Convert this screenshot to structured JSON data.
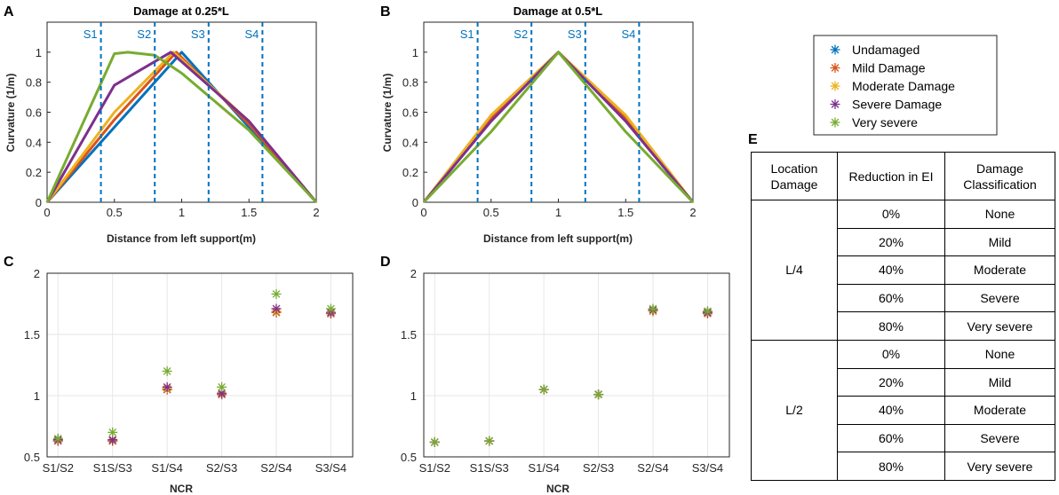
{
  "panels": {
    "A": {
      "label": "A",
      "title": "Damage at 0.25*L",
      "ylabel": "Curvature (1/m)",
      "xlabel": "Distance from left support(m)"
    },
    "B": {
      "label": "B",
      "title": "Damage at 0.5*L",
      "ylabel": "Curvature (1/m)",
      "xlabel": "Distance from left support(m)"
    },
    "C": {
      "label": "C",
      "xlabel": "NCR"
    },
    "D": {
      "label": "D",
      "xlabel": "NCR"
    },
    "E": {
      "label": "E"
    }
  },
  "legend": {
    "entries": [
      "Undamaged",
      "Mild Damage",
      "Moderate Damage",
      "Severe Damage",
      "Very severe"
    ],
    "colors": [
      "#0072BD",
      "#D95319",
      "#EDB120",
      "#7E2F8E",
      "#77AC30"
    ]
  },
  "table": {
    "headers": [
      "Location Damage",
      "Reduction in EI",
      "Damage Classification"
    ],
    "groups": [
      {
        "location": "L/4",
        "rows": [
          {
            "reduction": "0%",
            "classification": "None"
          },
          {
            "reduction": "20%",
            "classification": "Mild"
          },
          {
            "reduction": "40%",
            "classification": "Moderate"
          },
          {
            "reduction": "60%",
            "classification": "Severe"
          },
          {
            "reduction": "80%",
            "classification": "Very severe"
          }
        ]
      },
      {
        "location": "L/2",
        "rows": [
          {
            "reduction": "0%",
            "classification": "None"
          },
          {
            "reduction": "20%",
            "classification": "Mild"
          },
          {
            "reduction": "40%",
            "classification": "Moderate"
          },
          {
            "reduction": "60%",
            "classification": "Severe"
          },
          {
            "reduction": "80%",
            "classification": "Very severe"
          }
        ]
      }
    ]
  },
  "chart_data": [
    {
      "type": "line",
      "title": "Damage at 0.25*L",
      "xlabel": "Distance from left support(m)",
      "ylabel": "Curvature (1/m)",
      "xlim": [
        0,
        2
      ],
      "ylim": [
        0,
        1.2
      ],
      "xticks": [
        0,
        0.5,
        1,
        1.5,
        2
      ],
      "xtick_labels": [
        "0",
        "0.5",
        "1",
        "1.5",
        "2"
      ],
      "yticks": [
        0,
        0.2,
        0.4,
        0.6,
        0.8,
        1
      ],
      "ytick_labels": [
        "0",
        "0.2",
        "0.4",
        "0.6",
        "0.8",
        "1"
      ],
      "sensors": [
        {
          "name": "S1",
          "x": 0.4
        },
        {
          "name": "S2",
          "x": 0.8
        },
        {
          "name": "S3",
          "x": 1.2
        },
        {
          "name": "S4",
          "x": 1.6
        }
      ],
      "series": [
        {
          "name": "Undamaged",
          "color": "#0072BD",
          "x": [
            0,
            0.5,
            1,
            1.5,
            2
          ],
          "y": [
            0,
            0.5,
            1,
            0.5,
            0
          ]
        },
        {
          "name": "Mild Damage",
          "color": "#D95319",
          "x": [
            0,
            0.5,
            0.96,
            1.5,
            2
          ],
          "y": [
            0,
            0.55,
            1,
            0.52,
            0
          ]
        },
        {
          "name": "Moderate Damage",
          "color": "#EDB120",
          "x": [
            0,
            0.5,
            0.94,
            1.5,
            2
          ],
          "y": [
            0,
            0.6,
            1,
            0.54,
            0
          ]
        },
        {
          "name": "Severe Damage",
          "color": "#7E2F8E",
          "x": [
            0,
            0.5,
            0.92,
            1.5,
            2
          ],
          "y": [
            0,
            0.78,
            1,
            0.54,
            0
          ]
        },
        {
          "name": "Very severe",
          "color": "#77AC30",
          "x": [
            0,
            0.5,
            0.6,
            0.8,
            1,
            1.5,
            2
          ],
          "y": [
            0,
            0.99,
            1,
            0.98,
            0.86,
            0.48,
            0
          ]
        }
      ]
    },
    {
      "type": "line",
      "title": "Damage at 0.5*L",
      "xlabel": "Distance from left support(m)",
      "ylabel": "Curvature (1/m)",
      "xlim": [
        0,
        2
      ],
      "ylim": [
        0,
        1.2
      ],
      "xticks": [
        0,
        0.5,
        1,
        1.5,
        2
      ],
      "xtick_labels": [
        "0",
        "0.5",
        "1",
        "1.5",
        "2"
      ],
      "yticks": [
        0,
        0.2,
        0.4,
        0.6,
        0.8,
        1
      ],
      "ytick_labels": [
        "0",
        "0.2",
        "0.4",
        "0.6",
        "0.8",
        "1"
      ],
      "sensors": [
        {
          "name": "S1",
          "x": 0.4
        },
        {
          "name": "S2",
          "x": 0.8
        },
        {
          "name": "S3",
          "x": 1.2
        },
        {
          "name": "S4",
          "x": 1.6
        }
      ],
      "series": [
        {
          "name": "Undamaged",
          "color": "#0072BD",
          "x": [
            0,
            0.5,
            1,
            1.5,
            2
          ],
          "y": [
            0,
            0.55,
            1,
            0.55,
            0
          ]
        },
        {
          "name": "Mild Damage",
          "color": "#D95319",
          "x": [
            0,
            0.5,
            1,
            1.5,
            2
          ],
          "y": [
            0,
            0.56,
            1,
            0.56,
            0
          ]
        },
        {
          "name": "Moderate Damage",
          "color": "#EDB120",
          "x": [
            0,
            0.5,
            1,
            1.5,
            2
          ],
          "y": [
            0,
            0.58,
            1,
            0.58,
            0
          ]
        },
        {
          "name": "Severe Damage",
          "color": "#7E2F8E",
          "x": [
            0,
            0.5,
            1,
            1.5,
            2
          ],
          "y": [
            0,
            0.54,
            1,
            0.54,
            0
          ]
        },
        {
          "name": "Very severe",
          "color": "#77AC30",
          "x": [
            0,
            0.5,
            1,
            1.5,
            2
          ],
          "y": [
            0,
            0.47,
            1,
            0.47,
            0
          ]
        }
      ]
    },
    {
      "type": "scatter",
      "xlabel": "NCR",
      "categories": [
        "S1/S2",
        "S1S/S3",
        "S1/S4",
        "S2/S3",
        "S2/S4",
        "S3/S4"
      ],
      "ylim": [
        0.5,
        2
      ],
      "yticks": [
        0.5,
        1,
        1.5,
        2
      ],
      "ytick_labels": [
        "0.5",
        "1",
        "1.5",
        "2"
      ],
      "series": [
        {
          "name": "Undamaged",
          "color": "#0072BD",
          "values": [
            0.63,
            0.63,
            1.05,
            1.01,
            1.68,
            1.67
          ]
        },
        {
          "name": "Mild Damage",
          "color": "#D95319",
          "values": [
            0.63,
            0.63,
            1.05,
            1.01,
            1.68,
            1.67
          ]
        },
        {
          "name": "Moderate Damage",
          "color": "#EDB120",
          "values": [
            0.64,
            0.64,
            1.06,
            1.02,
            1.69,
            1.68
          ]
        },
        {
          "name": "Severe Damage",
          "color": "#7E2F8E",
          "values": [
            0.64,
            0.64,
            1.07,
            1.02,
            1.71,
            1.68
          ]
        },
        {
          "name": "Very severe",
          "color": "#77AC30",
          "values": [
            0.65,
            0.7,
            1.2,
            1.07,
            1.83,
            1.71
          ]
        }
      ]
    },
    {
      "type": "scatter",
      "xlabel": "NCR",
      "categories": [
        "S1/S2",
        "S1S/S3",
        "S1/S4",
        "S2/S3",
        "S2/S4",
        "S3/S4"
      ],
      "ylim": [
        0.5,
        2
      ],
      "yticks": [
        0.5,
        1,
        1.5,
        2
      ],
      "ytick_labels": [
        "0.5",
        "1",
        "1.5",
        "2"
      ],
      "series": [
        {
          "name": "Undamaged",
          "color": "#0072BD",
          "values": [
            0.62,
            0.63,
            1.05,
            1.01,
            1.69,
            1.68
          ]
        },
        {
          "name": "Mild Damage",
          "color": "#D95319",
          "values": [
            0.62,
            0.63,
            1.05,
            1.01,
            1.69,
            1.67
          ]
        },
        {
          "name": "Moderate Damage",
          "color": "#EDB120",
          "values": [
            0.62,
            0.63,
            1.05,
            1.01,
            1.69,
            1.68
          ]
        },
        {
          "name": "Severe Damage",
          "color": "#7E2F8E",
          "values": [
            0.62,
            0.63,
            1.05,
            1.01,
            1.7,
            1.68
          ]
        },
        {
          "name": "Very severe",
          "color": "#77AC30",
          "values": [
            0.62,
            0.63,
            1.05,
            1.01,
            1.71,
            1.69
          ]
        }
      ]
    }
  ]
}
